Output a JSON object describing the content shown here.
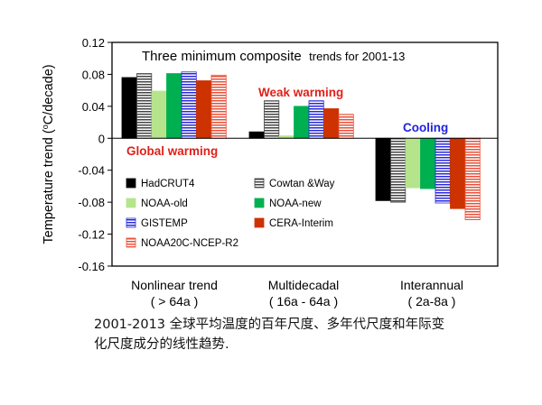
{
  "chart_data": {
    "type": "bar",
    "title_main": "Three minimum composite",
    "title_tail": "trends for 2001-13",
    "ylabel": "Temperature trend (",
    "ylabel_sup": "o",
    "ylabel_tail": "C/decade)",
    "ylim": [
      -0.16,
      0.12
    ],
    "yticks": [
      "0.12",
      "0.08",
      "0.04",
      "0",
      "-0.04",
      "-0.08",
      "-0.12",
      "-0.16"
    ],
    "ytick_values": [
      0.12,
      0.08,
      0.04,
      0,
      -0.04,
      -0.08,
      -0.12,
      -0.16
    ],
    "grid": false,
    "categories": [
      {
        "line1": "Nonlinear trend",
        "line2": "( > 64a )"
      },
      {
        "line1": "Multidecadal",
        "line2": "( 16a - 64a )"
      },
      {
        "line1": "Interannual",
        "line2": "( 2a-8a )"
      }
    ],
    "series": [
      {
        "name": "HadCRUT4",
        "values": [
          0.076,
          0.008,
          -0.078
        ],
        "fill": "solid",
        "color": "#000000"
      },
      {
        "name": "Cowtan &Way",
        "values": [
          0.081,
          0.047,
          -0.08
        ],
        "fill": "hstripe",
        "color": "#444444"
      },
      {
        "name": "NOAA-old",
        "values": [
          0.059,
          0.003,
          -0.062
        ],
        "fill": "solid",
        "color": "#b6e48c"
      },
      {
        "name": "NOAA-new",
        "values": [
          0.081,
          0.04,
          -0.063
        ],
        "fill": "solid",
        "color": "#00b050"
      },
      {
        "name": "GISTEMP",
        "values": [
          0.083,
          0.047,
          -0.081
        ],
        "fill": "hstripe",
        "color": "#2a2ad8"
      },
      {
        "name": "CERA-Interim",
        "values": [
          0.072,
          0.037,
          -0.088
        ],
        "fill": "solid",
        "color": "#cc3300"
      },
      {
        "name": "NOAA20C-NCEP-R2",
        "values": [
          0.079,
          0.03,
          -0.102
        ],
        "fill": "hstripe",
        "color": "#e8503a"
      }
    ],
    "annotations": [
      {
        "text": "Global warming",
        "color": "#e0201a"
      },
      {
        "text": "Weak warming",
        "color": "#e0201a"
      },
      {
        "text": "Cooling",
        "color": "#2222dd"
      }
    ],
    "legend_placement": "lower-left"
  },
  "caption": {
    "line1": "2001-2013 全球平均温度的百年尺度、多年代尺度和年际变",
    "line2": "化尺度成分的线性趋势."
  }
}
